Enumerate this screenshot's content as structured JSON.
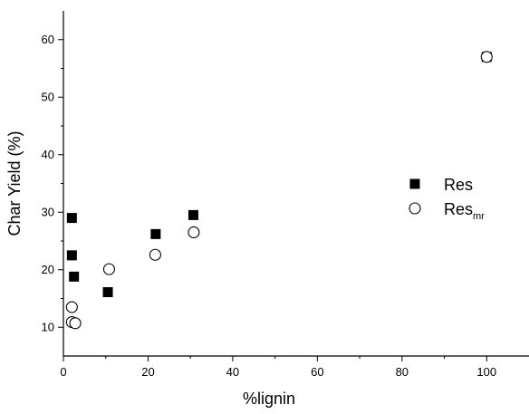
{
  "chart_data": {
    "type": "scatter",
    "xlabel": "%lignin",
    "ylabel": "Char Yield (%)",
    "xlim": [
      0,
      110
    ],
    "ylim": [
      5,
      65
    ],
    "x_ticks": [
      0,
      20,
      40,
      60,
      80,
      100
    ],
    "y_ticks": [
      10,
      20,
      30,
      40,
      50,
      60
    ],
    "grid": false,
    "legend_position": "right",
    "series": [
      {
        "name": "Res",
        "name_subscript": "",
        "marker": "filled-square",
        "color": "#000000",
        "x": [
          2,
          2,
          2.5,
          10.5,
          21.8,
          30.7,
          100
        ],
        "y": [
          29,
          22.5,
          18.8,
          16.1,
          26.2,
          29.5,
          57
        ]
      },
      {
        "name": "Res",
        "name_subscript": "mr",
        "marker": "open-circle",
        "color": "#000000",
        "x": [
          2,
          2,
          2.8,
          10.8,
          21.7,
          30.8,
          100
        ],
        "y": [
          13.5,
          10.9,
          10.7,
          20.1,
          22.6,
          26.5,
          57
        ]
      }
    ]
  }
}
